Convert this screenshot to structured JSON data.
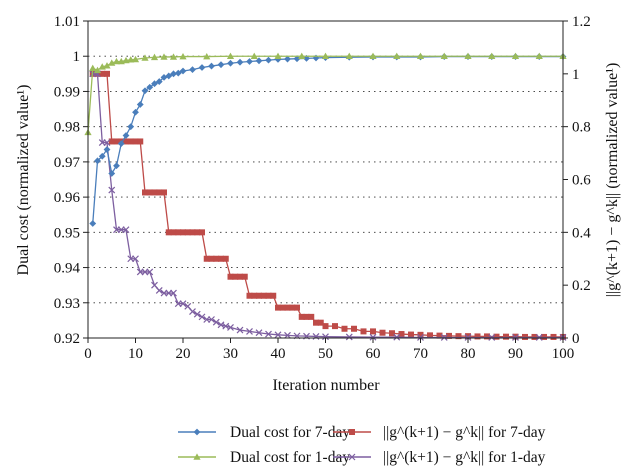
{
  "chart_data": {
    "type": "line",
    "xlabel": "Iteration number",
    "ylabel_left": "Dual cost (normalized value¹)",
    "ylabel_right": "||g^(k+1) − g^k|| (normalized value¹)",
    "xlim": [
      0,
      100
    ],
    "ylim_left": [
      0.92,
      1.01
    ],
    "ylim_right": [
      0,
      1.2
    ],
    "x_ticks": [
      "0",
      "10",
      "20",
      "30",
      "40",
      "50",
      "60",
      "70",
      "80",
      "90",
      "100"
    ],
    "y_ticks_left": [
      "0.92",
      "0.93",
      "0.94",
      "0.95",
      "0.96",
      "0.97",
      "0.98",
      "0.99",
      "1",
      "1.01"
    ],
    "y_ticks_right": [
      "0",
      "0.2",
      "0.4",
      "0.6",
      "0.8",
      "1",
      "1.2"
    ],
    "grid": "horizontal dotted",
    "legend_position": "bottom",
    "series": [
      {
        "name": "Dual cost for 7-day",
        "axis": "left",
        "color": "#4a7ebb",
        "marker": "diamond",
        "x": [
          1,
          2,
          3,
          4,
          5,
          6,
          7,
          8,
          9,
          10,
          11,
          12,
          13,
          14,
          15,
          16,
          17,
          18,
          19,
          20,
          22,
          24,
          26,
          28,
          30,
          32,
          34,
          36,
          38,
          40,
          42,
          44,
          46,
          48,
          50,
          55,
          60,
          65,
          70,
          75,
          80,
          85,
          90,
          95,
          100
        ],
        "values": [
          0.9525,
          0.9703,
          0.9716,
          0.9735,
          0.9667,
          0.9689,
          0.9752,
          0.9775,
          0.98,
          0.9841,
          0.9863,
          0.9902,
          0.9912,
          0.9922,
          0.9928,
          0.994,
          0.9944,
          0.995,
          0.9952,
          0.9958,
          0.9962,
          0.9968,
          0.9972,
          0.9976,
          0.998,
          0.9983,
          0.9985,
          0.9987,
          0.9989,
          0.9991,
          0.9992,
          0.9993,
          0.9994,
          0.9995,
          0.9996,
          0.9997,
          0.9998,
          0.9998,
          0.9998,
          0.9999,
          0.9999,
          0.9999,
          0.9999,
          0.9999,
          0.9999
        ]
      },
      {
        "name": "Dual cost for 1-day",
        "axis": "left",
        "color": "#9bbb59",
        "marker": "triangle",
        "x": [
          0,
          1,
          2,
          3,
          4,
          5,
          6,
          7,
          8,
          9,
          10,
          12,
          14,
          16,
          18,
          20,
          25,
          30,
          35,
          40,
          45,
          50,
          55,
          60,
          65,
          70,
          75,
          80,
          85,
          90,
          95,
          100
        ],
        "values": [
          0.9784,
          0.9966,
          0.996,
          0.997,
          0.9973,
          0.9981,
          0.9985,
          0.9985,
          0.9988,
          0.999,
          0.9991,
          0.9995,
          0.9997,
          0.9998,
          0.9998,
          0.9999,
          0.9999,
          1.0,
          1.0,
          1.0,
          1.0,
          1.0,
          1.0,
          1.0,
          1.0,
          1.0,
          1.0,
          1.0,
          1.0,
          1.0,
          1.0,
          1.0
        ]
      },
      {
        "name": "||g^(k+1) − g^k|| for 7-day",
        "axis": "right",
        "color": "#be4b48",
        "marker": "square",
        "x": [
          1,
          2,
          3,
          4,
          5,
          6,
          7,
          8,
          9,
          10,
          11,
          12,
          13,
          14,
          15,
          16,
          17,
          18,
          19,
          20,
          21,
          22,
          23,
          24,
          25,
          26,
          27,
          28,
          29,
          30,
          31,
          32,
          33,
          34,
          35,
          36,
          37,
          38,
          39,
          40,
          41,
          42,
          43,
          44,
          45,
          46,
          47,
          48,
          49,
          50,
          52,
          54,
          56,
          58,
          60,
          62,
          64,
          66,
          68,
          70,
          72,
          74,
          76,
          78,
          80,
          82,
          84,
          86,
          88,
          90,
          92,
          94,
          96,
          98,
          100
        ],
        "values": [
          1.0,
          1.0,
          1.0,
          1.0,
          0.744,
          0.744,
          0.744,
          0.744,
          0.744,
          0.744,
          0.744,
          0.551,
          0.551,
          0.551,
          0.551,
          0.551,
          0.4,
          0.4,
          0.4,
          0.4,
          0.4,
          0.4,
          0.4,
          0.4,
          0.3,
          0.3,
          0.3,
          0.3,
          0.3,
          0.232,
          0.232,
          0.232,
          0.232,
          0.16,
          0.16,
          0.16,
          0.16,
          0.16,
          0.16,
          0.115,
          0.115,
          0.115,
          0.115,
          0.115,
          0.08,
          0.08,
          0.08,
          0.058,
          0.058,
          0.045,
          0.045,
          0.035,
          0.035,
          0.025,
          0.025,
          0.02,
          0.018,
          0.015,
          0.013,
          0.012,
          0.01,
          0.009,
          0.008,
          0.007,
          0.007,
          0.006,
          0.006,
          0.005,
          0.005,
          0.005,
          0.004,
          0.004,
          0.004,
          0.004,
          0.004
        ]
      },
      {
        "name": "||g^(k+1) − g^k|| for 1-day",
        "axis": "right",
        "color": "#7d5fa0",
        "marker": "x",
        "x": [
          1,
          2,
          3,
          4,
          5,
          6,
          7,
          8,
          9,
          10,
          11,
          12,
          13,
          14,
          15,
          16,
          17,
          18,
          19,
          20,
          21,
          22,
          23,
          24,
          25,
          26,
          27,
          28,
          29,
          30,
          32,
          34,
          36,
          38,
          40,
          42,
          44,
          46,
          48,
          50,
          55,
          60,
          65,
          70,
          75,
          80,
          85,
          90,
          95,
          100
        ],
        "values": [
          1.0,
          1.0,
          0.74,
          0.74,
          0.56,
          0.41,
          0.41,
          0.41,
          0.3,
          0.3,
          0.25,
          0.25,
          0.25,
          0.2,
          0.18,
          0.17,
          0.17,
          0.17,
          0.13,
          0.13,
          0.12,
          0.1,
          0.09,
          0.08,
          0.07,
          0.07,
          0.06,
          0.05,
          0.045,
          0.04,
          0.03,
          0.025,
          0.02,
          0.015,
          0.012,
          0.01,
          0.008,
          0.007,
          0.006,
          0.005,
          0.004,
          0.003,
          0.003,
          0.002,
          0.002,
          0.002,
          0.002,
          0.002,
          0.002,
          0.002
        ]
      }
    ]
  }
}
